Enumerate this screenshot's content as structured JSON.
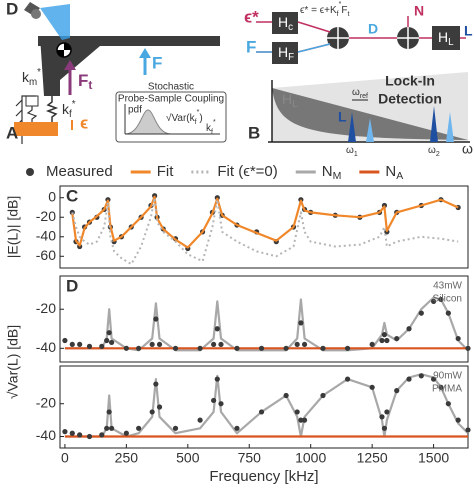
{
  "diagram": {
    "a": {
      "panel": "A",
      "probe": "D",
      "km": {
        "text": "k",
        "sub": "m",
        "sup": "*"
      },
      "ft": {
        "text": "F",
        "sub": "t"
      },
      "f": "F",
      "kf": {
        "text": "k",
        "sub": "f",
        "sup": "*"
      },
      "eps": "ϵ",
      "inset_title": "Stochastic",
      "inset_subtitle": "Probe-Sample Coupling",
      "pdf": "pdf",
      "var": {
        "text": "√Var(k",
        "sub": "f",
        "sup": "*",
        "tail": ")"
      },
      "axis": {
        "text": "k",
        "sub": "f",
        "sup": "*"
      }
    },
    "b": {
      "panel": "B",
      "eps_star": "ϵ*",
      "f": "F",
      "hc": {
        "text": "H",
        "sub": "c"
      },
      "hf": {
        "text": "H",
        "sub": "F"
      },
      "d": "D",
      "n": "N",
      "hl": {
        "text": "H",
        "sub": "L"
      },
      "l": "L",
      "formula": {
        "text": "ϵ* = ϵ+K",
        "sub": "f",
        "sup": "*",
        "tail": "F",
        "tail_sub": "t"
      },
      "lockin": "Lock-In",
      "detection": "Detection",
      "hl2": {
        "text": "H",
        "sub": "L"
      },
      "wref": {
        "text": "ω",
        "sub": "ref"
      },
      "l2": "L",
      "w1": {
        "text": "ω",
        "sub": "1"
      },
      "w2": {
        "text": "ω",
        "sub": "2"
      },
      "w": "ω"
    }
  },
  "chart_data": [
    {
      "type": "line",
      "panel": "C",
      "ylabel": "|E(L)| [dB]",
      "x": [
        30,
        45,
        60,
        80,
        100,
        130,
        160,
        175,
        185,
        200,
        230,
        270,
        310,
        350,
        365,
        375,
        400,
        450,
        500,
        560,
        600,
        620,
        640,
        700,
        780,
        860,
        930,
        960,
        975,
        1000,
        1100,
        1200,
        1280,
        1300,
        1310,
        1350,
        1450,
        1530,
        1600
      ],
      "xlim": [
        -20,
        1640
      ],
      "ylim": [
        -72,
        12
      ],
      "yticks": [
        -60,
        -40,
        -20,
        0
      ],
      "series": [
        {
          "name": "Measured",
          "style": "dots",
          "color": "#3a3a3a",
          "values": [
            -15,
            -45,
            -50,
            -30,
            -25,
            -20,
            -12,
            -2,
            -30,
            -45,
            -40,
            -30,
            -20,
            -8,
            2,
            -20,
            -32,
            -42,
            -52,
            -35,
            -15,
            0,
            -18,
            -28,
            -35,
            -45,
            -30,
            -2,
            -12,
            -15,
            -18,
            -20,
            -15,
            -8,
            -35,
            -15,
            -8,
            -2,
            -10
          ]
        },
        {
          "name": "Fit",
          "style": "line",
          "color": "#f0872a",
          "values": [
            -16,
            -44,
            -49,
            -31,
            -25,
            -19,
            -12,
            -3,
            -29,
            -44,
            -40,
            -30,
            -20,
            -9,
            1,
            -21,
            -32,
            -43,
            -51,
            -35,
            -16,
            -1,
            -18,
            -28,
            -36,
            -44,
            -30,
            -3,
            -13,
            -15,
            -18,
            -20,
            -15,
            -9,
            -34,
            -15,
            -8,
            -2,
            -10
          ]
        },
        {
          "name": "Fit (ϵ*=0)",
          "style": "dotted",
          "color": "#b5b5b5",
          "values": [
            -15,
            -30,
            -40,
            -45,
            -48,
            -45,
            -30,
            -5,
            -40,
            -55,
            -62,
            -68,
            -50,
            -20,
            0,
            -25,
            -35,
            -45,
            -58,
            -65,
            -30,
            -2,
            -35,
            -45,
            -55,
            -60,
            -50,
            -15,
            -35,
            -45,
            -50,
            -48,
            -40,
            -30,
            -50,
            -45,
            -40,
            -42,
            -45
          ]
        }
      ]
    },
    {
      "type": "line",
      "panel": "D",
      "ylabel": "√Var(L) [dB]",
      "annotation": "43mW",
      "annotation2": "Silicon",
      "x": [
        0,
        30,
        60,
        100,
        150,
        170,
        180,
        190,
        250,
        300,
        355,
        370,
        385,
        450,
        550,
        605,
        620,
        635,
        700,
        800,
        900,
        945,
        960,
        975,
        1050,
        1150,
        1250,
        1290,
        1300,
        1310,
        1350,
        1400,
        1450,
        1500,
        1530,
        1560,
        1600,
        1640
      ],
      "xlim": [
        -20,
        1640
      ],
      "ylim": [
        -47,
        -3
      ],
      "yticks": [
        -40,
        -20
      ],
      "series": [
        {
          "name": "N",
          "sub": "M",
          "style": "line",
          "color": "#a8a8a8",
          "values": [
            -40,
            -40,
            -40,
            -40,
            -40,
            -35,
            -20,
            -35,
            -40,
            -41,
            -35,
            -17,
            -35,
            -41,
            -41,
            -35,
            -16,
            -35,
            -41,
            -41,
            -41,
            -35,
            -15,
            -35,
            -41,
            -41,
            -40,
            -33,
            -27,
            -33,
            -36,
            -30,
            -20,
            -14,
            -15,
            -22,
            -36,
            -41
          ]
        },
        {
          "name": "N",
          "sub": "A",
          "style": "line",
          "color": "#d9541e",
          "values": [
            -40,
            -40,
            -40,
            -40,
            -40,
            -40,
            -40,
            -40,
            -40,
            -40,
            -40,
            -40,
            -40,
            -40,
            -40,
            -40,
            -40,
            -40,
            -40,
            -40,
            -40,
            -40,
            -40,
            -40,
            -40,
            -40,
            -40,
            -40,
            -40,
            -40,
            -40,
            -40,
            -40,
            -40,
            -40,
            -40,
            -40,
            -40
          ]
        },
        {
          "style": "dots",
          "color": "#3a3a3a",
          "values": [
            -36,
            -38,
            -38,
            -39,
            -39,
            -36,
            -32,
            -37,
            -40,
            -40,
            -38,
            -25,
            -38,
            -40,
            -40,
            -38,
            -30,
            -38,
            -40,
            -40,
            -40,
            -38,
            -27,
            -38,
            -40,
            -40,
            -38,
            -36,
            -33,
            -36,
            -35,
            -30,
            -22,
            -16,
            -15,
            -22,
            -35,
            -40
          ]
        }
      ]
    },
    {
      "type": "line",
      "annotation": "90mW",
      "annotation2": "PMMA",
      "xlabel": "Frequency [kHz]",
      "x": [
        0,
        30,
        60,
        100,
        150,
        170,
        180,
        190,
        250,
        300,
        355,
        370,
        385,
        450,
        550,
        605,
        620,
        635,
        700,
        800,
        900,
        945,
        960,
        975,
        1050,
        1150,
        1250,
        1290,
        1300,
        1310,
        1350,
        1400,
        1450,
        1500,
        1530,
        1560,
        1600,
        1640
      ],
      "xlim": [
        -20,
        1640
      ],
      "ylim": [
        -47,
        3
      ],
      "yticks": [
        -40,
        -20
      ],
      "xticks": [
        0,
        250,
        500,
        750,
        1000,
        1250,
        1500
      ],
      "series": [
        {
          "style": "line",
          "color": "#a8a8a8",
          "values": [
            -40,
            -40,
            -40,
            -40,
            -40,
            -35,
            -15,
            -35,
            -40,
            -38,
            -28,
            -5,
            -28,
            -38,
            -35,
            -25,
            -3,
            -25,
            -38,
            -25,
            -15,
            -28,
            -40,
            -28,
            -15,
            -5,
            -10,
            -30,
            -40,
            -30,
            -12,
            -4,
            -2,
            -4,
            -10,
            -20,
            -32,
            -38
          ]
        },
        {
          "style": "line",
          "color": "#d9541e",
          "values": [
            -40,
            -40,
            -40,
            -40,
            -40,
            -40,
            -40,
            -40,
            -40,
            -40,
            -40,
            -40,
            -40,
            -40,
            -40,
            -40,
            -40,
            -40,
            -40,
            -40,
            -40,
            -40,
            -40,
            -40,
            -40,
            -40,
            -40,
            -40,
            -40,
            -40,
            -40,
            -40,
            -40,
            -40,
            -40,
            -40,
            -40,
            -40
          ]
        },
        {
          "style": "dots",
          "color": "#3a3a3a",
          "values": [
            -37,
            -38,
            -39,
            -40,
            -39,
            -35,
            -25,
            -35,
            -38,
            -35,
            -25,
            -8,
            -22,
            -35,
            -30,
            -18,
            -5,
            -20,
            -35,
            -25,
            -15,
            -25,
            -30,
            -30,
            -15,
            -5,
            -10,
            -28,
            -35,
            -25,
            -12,
            -5,
            -3,
            -5,
            -10,
            -20,
            -30,
            -36
          ]
        }
      ]
    }
  ]
}
